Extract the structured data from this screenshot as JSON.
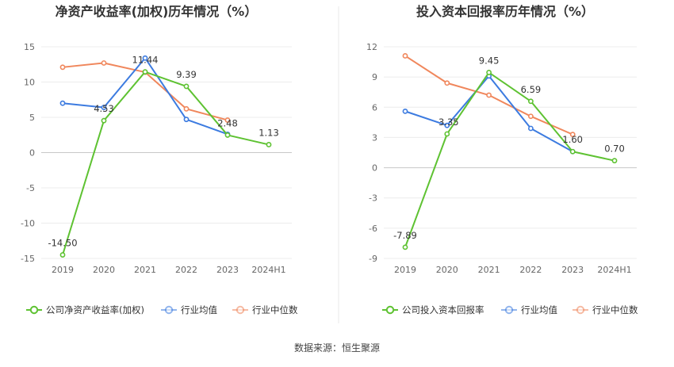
{
  "footer": {
    "source": "数据来源：恒生聚源"
  },
  "chart_data": [
    {
      "type": "line",
      "title": "净资产收益率(加权)历年情况（%）",
      "categories": [
        "2019",
        "2020",
        "2021",
        "2022",
        "2023",
        "2024H1"
      ],
      "ylim": [
        -15,
        15
      ],
      "yticks": [
        15,
        10,
        5,
        0,
        -5,
        -10,
        -15
      ],
      "grid": true,
      "legend_position": "bottom",
      "series": [
        {
          "name": "公司净资产收益率(加权)",
          "color": "#5ec232",
          "labeled": true,
          "values": [
            -14.5,
            4.53,
            11.44,
            9.39,
            2.48,
            1.13
          ],
          "labels": [
            "-14.50",
            "4.53",
            "11.44",
            "9.39",
            "2.48",
            "1.13"
          ]
        },
        {
          "name": "行业均值",
          "color": "#3c7be0",
          "labeled": false,
          "values": [
            7.0,
            6.4,
            13.4,
            4.7,
            2.6,
            null
          ]
        },
        {
          "name": "行业中位数",
          "color": "#f0875c",
          "labeled": false,
          "values": [
            12.1,
            12.7,
            11.4,
            6.2,
            4.6,
            null
          ]
        }
      ]
    },
    {
      "type": "line",
      "title": "投入资本回报率历年情况（%）",
      "categories": [
        "2019",
        "2020",
        "2021",
        "2022",
        "2023",
        "2024H1"
      ],
      "ylim": [
        -9,
        12
      ],
      "yticks": [
        12,
        9,
        6,
        3,
        0,
        -3,
        -6,
        -9
      ],
      "grid": true,
      "legend_position": "bottom",
      "series": [
        {
          "name": "公司投入资本回报率",
          "color": "#5ec232",
          "labeled": true,
          "values": [
            -7.89,
            3.35,
            9.45,
            6.59,
            1.6,
            0.7
          ],
          "labels": [
            "-7.89",
            "3.35",
            "9.45",
            "6.59",
            "1.60",
            "0.70"
          ]
        },
        {
          "name": "行业均值",
          "color": "#3c7be0",
          "labeled": false,
          "values": [
            5.6,
            4.2,
            9.1,
            3.9,
            1.6,
            null
          ]
        },
        {
          "name": "行业中位数",
          "color": "#f0875c",
          "labeled": false,
          "values": [
            11.1,
            8.4,
            7.2,
            5.1,
            3.3,
            null
          ]
        }
      ]
    }
  ]
}
